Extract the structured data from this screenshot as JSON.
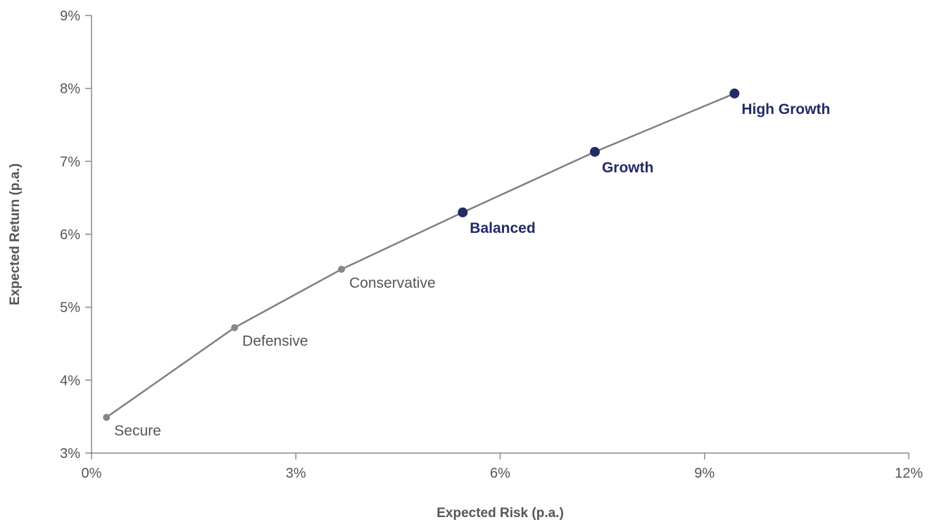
{
  "chart_data": {
    "type": "line",
    "xlabel": "Expected Risk (p.a.)",
    "ylabel": "Expected Return (p.a.)",
    "xlim": [
      0,
      12
    ],
    "ylim": [
      3,
      9
    ],
    "xticks": [
      0,
      3,
      6,
      9,
      12
    ],
    "yticks": [
      3,
      4,
      5,
      6,
      7,
      8,
      9
    ],
    "xtick_labels": [
      "0%",
      "3%",
      "6%",
      "9%",
      "12%"
    ],
    "ytick_labels": [
      "3%",
      "4%",
      "5%",
      "6%",
      "7%",
      "8%",
      "9%"
    ],
    "grid": false,
    "line_color": "#808080",
    "minor_point_color": "#808890",
    "highlight_color": "#232a66",
    "series": [
      {
        "points": [
          {
            "label": "Secure",
            "x": 0.22,
            "y": 3.49,
            "highlight": false
          },
          {
            "label": "Defensive",
            "x": 2.1,
            "y": 4.72,
            "highlight": false
          },
          {
            "label": "Conservative",
            "x": 3.67,
            "y": 5.52,
            "highlight": false
          },
          {
            "label": "Balanced",
            "x": 5.45,
            "y": 6.3,
            "highlight": true
          },
          {
            "label": "Growth",
            "x": 7.39,
            "y": 7.13,
            "highlight": true
          },
          {
            "label": "High Growth",
            "x": 9.44,
            "y": 7.93,
            "highlight": true
          }
        ]
      }
    ]
  }
}
